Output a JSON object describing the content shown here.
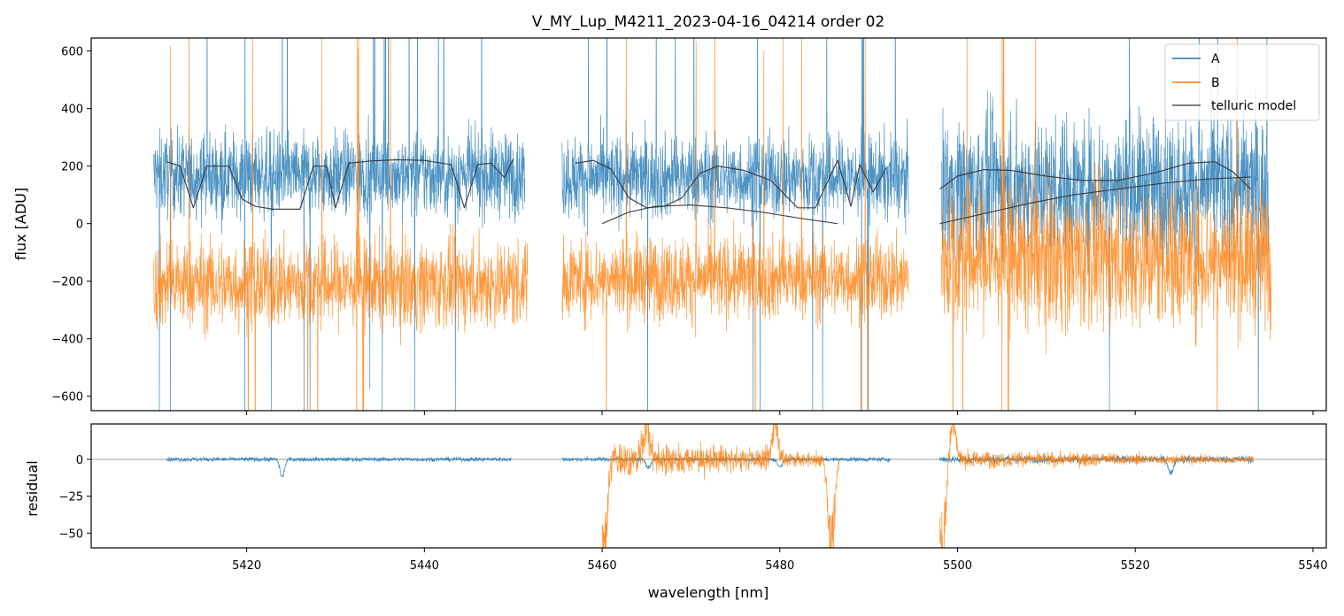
{
  "chart_data": [
    {
      "type": "line",
      "title": "V_MY_Lup_M4211_2023-04-16_04214  order 02",
      "xlabel": "",
      "ylabel": "flux [ADU]",
      "xlim": [
        5402.5,
        5541.5
      ],
      "ylim": [
        -650,
        645
      ],
      "yticks": [
        -600,
        -400,
        -200,
        0,
        200,
        400,
        600
      ],
      "ytick_labels": [
        "−600",
        "−400",
        "−200",
        "0",
        "200",
        "400",
        "600"
      ],
      "xticks": [
        5420,
        5440,
        5460,
        5480,
        5500,
        5520,
        5540
      ],
      "legend": {
        "position": "top-right",
        "entries": [
          {
            "label": "A",
            "color": "#1f77b4"
          },
          {
            "label": "B",
            "color": "#ff7f0e"
          },
          {
            "label": "telluric model",
            "color": "#333333"
          }
        ]
      },
      "series": [
        {
          "name": "A",
          "color": "#1f77b4",
          "segments": [
            {
              "x_range": [
                5409.5,
                5451.3
              ],
              "approx_center": 170,
              "approx_spread": 130
            },
            {
              "x_range": [
                5455.5,
                5494.5
              ],
              "approx_center": 160,
              "approx_spread": 130
            },
            {
              "x_range": [
                5498.2,
                5535.0
              ],
              "approx_center": 130,
              "approx_spread": 220
            }
          ]
        },
        {
          "name": "B",
          "color": "#ff7f0e",
          "segments": [
            {
              "x_range": [
                5409.5,
                5451.6
              ],
              "approx_center": -210,
              "approx_spread": 140
            },
            {
              "x_range": [
                5455.5,
                5494.5
              ],
              "approx_center": -190,
              "approx_spread": 130
            },
            {
              "x_range": [
                5498.2,
                5535.3
              ],
              "approx_center": -120,
              "approx_spread": 220
            }
          ]
        },
        {
          "name": "telluric model",
          "color": "#333333",
          "curves": [
            {
              "x": [
                5411.0,
                5412.5,
                5414.0,
                5415.5,
                5418.0,
                5419.5,
                5421.0,
                5423.0,
                5426.0,
                5427.5,
                5429.0,
                5430.0,
                5431.5,
                5434.0,
                5437.0,
                5440.0,
                5443.0,
                5444.5,
                5446.0,
                5447.5,
                5449.0,
                5450.0
              ],
              "y": [
                215,
                200,
                55,
                200,
                200,
                85,
                60,
                50,
                50,
                200,
                200,
                55,
                210,
                218,
                222,
                220,
                205,
                55,
                205,
                210,
                160,
                225
              ]
            },
            {
              "x": [
                5457.0,
                5459.0,
                5461.0,
                5463.0,
                5465.0,
                5467.0,
                5469.0,
                5471.0,
                5473.0,
                5476.0,
                5479.0,
                5482.0,
                5484.0,
                5486.5,
                5488.0,
                5489.0,
                5490.5,
                5492.0
              ],
              "y": [
                210,
                220,
                190,
                90,
                55,
                60,
                90,
                175,
                200,
                185,
                150,
                55,
                55,
                220,
                60,
                205,
                110,
                195
              ]
            },
            {
              "x": [
                5460.0,
                5463.0,
                5466.0,
                5470.0,
                5474.0,
                5478.0,
                5482.0,
                5486.5
              ],
              "y": [
                0,
                40,
                60,
                65,
                55,
                40,
                20,
                0
              ]
            },
            {
              "x": [
                5498.0,
                5500.0,
                5503.0,
                5506.0,
                5510.0,
                5514.0,
                5518.0,
                5522.0,
                5526.0,
                5529.0,
                5531.0,
                5533.0
              ],
              "y": [
                120,
                165,
                188,
                185,
                165,
                150,
                150,
                175,
                210,
                215,
                180,
                120
              ]
            },
            {
              "x": [
                5498.0,
                5503.0,
                5508.0,
                5513.0,
                5518.0,
                5523.0,
                5528.0,
                5533.0
              ],
              "y": [
                0,
                35,
                70,
                100,
                120,
                140,
                155,
                162
              ]
            }
          ]
        }
      ]
    },
    {
      "type": "line",
      "title": "",
      "xlabel": "wavelength [nm]",
      "ylabel": "residual",
      "xlim": [
        5402.5,
        5541.5
      ],
      "ylim": [
        -60,
        24
      ],
      "yticks": [
        -50,
        -25,
        0
      ],
      "ytick_labels": [
        "−50",
        "−25",
        "0"
      ],
      "xticks": [
        5420,
        5440,
        5460,
        5480,
        5500,
        5520,
        5540
      ],
      "xtick_labels": [
        "5420",
        "5440",
        "5460",
        "5480",
        "5500",
        "5520",
        "5540"
      ],
      "zero_line": 0,
      "series": [
        {
          "name": "A",
          "color": "#1f77b4",
          "segments": [
            {
              "x_range": [
                5411.0,
                5449.8
              ],
              "approx_spread": 1.5,
              "dips": [
                {
                  "x": 5424.0,
                  "depth": -12
                }
              ]
            },
            {
              "x_range": [
                5455.5,
                5492.4
              ],
              "approx_spread": 1.5,
              "dips": [
                {
                  "x": 5465.2,
                  "depth": -6
                },
                {
                  "x": 5480.0,
                  "depth": -5
                }
              ]
            },
            {
              "x_range": [
                5498.0,
                5533.2
              ],
              "approx_spread": 2.5,
              "dips": [
                {
                  "x": 5524.0,
                  "depth": -10
                }
              ]
            }
          ]
        },
        {
          "name": "B",
          "color": "#ff7f0e",
          "segments": [
            {
              "x_range": [
                5460.0,
                5486.7
              ],
              "approx_spread": 8,
              "features": [
                {
                  "x": 5460.2,
                  "depth": -60
                },
                {
                  "x": 5465.0,
                  "depth": 24
                },
                {
                  "x": 5479.5,
                  "depth": 24
                },
                {
                  "x": 5485.8,
                  "depth": -60
                }
              ]
            },
            {
              "x_range": [
                5498.0,
                5533.3
              ],
              "approx_spread": 4,
              "features": [
                {
                  "x": 5498.3,
                  "depth": -60
                },
                {
                  "x": 5499.5,
                  "depth": 24
                }
              ]
            }
          ]
        }
      ]
    }
  ]
}
